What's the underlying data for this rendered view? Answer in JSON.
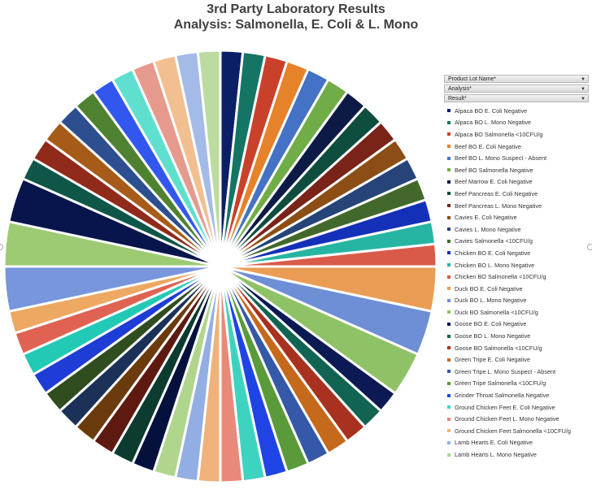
{
  "title": {
    "line1": "3rd Party Laboratory Results",
    "line2": "Analysis: Salmonella, E. Coli & L. Mono"
  },
  "filters": [
    {
      "label": "Product Lot Name*"
    },
    {
      "label": "Analysis*"
    },
    {
      "label": "Result*"
    }
  ],
  "chart_data": {
    "type": "pie",
    "title": "3rd Party Laboratory Results",
    "subtitle": "Analysis: Salmonella, E. Coli & L. Mono",
    "start_angle_deg": 0,
    "direction": "clockwise",
    "legend_position": "right",
    "slices": [
      {
        "label": "Alpaca BO E. Coli Negative",
        "value": 1,
        "color": "#0b1f66"
      },
      {
        "label": "Alpaca BO L. Mono Negative",
        "value": 1,
        "color": "#157565"
      },
      {
        "label": "Alpaca BO Salmonella <10CFU/g",
        "value": 1,
        "color": "#c9412a"
      },
      {
        "label": "Beef BO E. Coli Negative",
        "value": 1,
        "color": "#e5822a"
      },
      {
        "label": "Beef BO L. Mono Suspect - Absent",
        "value": 1,
        "color": "#4472c4"
      },
      {
        "label": "Beef BO Salmonella Negative",
        "value": 1,
        "color": "#70ad47"
      },
      {
        "label": "Beef Marrow E. Coli Negative",
        "value": 1,
        "color": "#0d1a45"
      },
      {
        "label": "Beef Pancreas E. Coli Negative",
        "value": 1,
        "color": "#0f4d3e"
      },
      {
        "label": "Beef Pancreas L. Mono Negative",
        "value": 1,
        "color": "#7a2318"
      },
      {
        "label": "Cavies E. Coli Negative",
        "value": 1,
        "color": "#8c4e14"
      },
      {
        "label": "Cavies L. Mono Negative",
        "value": 1,
        "color": "#264478"
      },
      {
        "label": "Cavies Salmonella <10CFU/g",
        "value": 1,
        "color": "#43682b"
      },
      {
        "label": "Chicken BO E. Coli Negative",
        "value": 1,
        "color": "#1530b8"
      },
      {
        "label": "Chicken BO L. Mono Negative",
        "value": 1,
        "color": "#27b5a3"
      },
      {
        "label": "Chicken BO Salmonella <10CFU/g",
        "value": 1,
        "color": "#d95a48"
      },
      {
        "label": "Duck BO E. Coli Negative",
        "value": 2,
        "color": "#eb9c55"
      },
      {
        "label": "Duck BO L. Mono Negative",
        "value": 2,
        "color": "#6e8fd6"
      },
      {
        "label": "Duck BO Salmonella <10CFU/g",
        "value": 2,
        "color": "#8fc266"
      },
      {
        "label": "Goose BO E. Coli Negative",
        "value": 1,
        "color": "#0b1a52"
      },
      {
        "label": "Goose BO L. Mono Negative",
        "value": 1,
        "color": "#106451"
      },
      {
        "label": "Goose BO Salmonella <10CFU/g",
        "value": 1,
        "color": "#a8321f"
      },
      {
        "label": "Green Tripe E. Coli Negative",
        "value": 1,
        "color": "#c5691d"
      },
      {
        "label": "Green Tripe L. Mono Suspect - Absent",
        "value": 1,
        "color": "#3558a8"
      },
      {
        "label": "Green Tripe Salmonella <10CFU/g",
        "value": 1,
        "color": "#5a9a3a"
      },
      {
        "label": "Grinder Throat Salmonella Negative",
        "value": 1,
        "color": "#1f44e6"
      },
      {
        "label": "Ground Chicken Feet E. Coli Negative",
        "value": 1,
        "color": "#3ed3c1"
      },
      {
        "label": "Ground Chicken Feet L. Mono Negative",
        "value": 1,
        "color": "#e8897a"
      },
      {
        "label": "Ground Chicken Feet Salmonella <10CFU/g",
        "value": 1,
        "color": "#f0b27a"
      },
      {
        "label": "Lamb Hearts E. Coli Negative",
        "value": 1,
        "color": "#93aee3"
      },
      {
        "label": "Lamb Hearts L. Mono Negative",
        "value": 1,
        "color": "#b0d68d"
      },
      {
        "label": "",
        "value": 1,
        "color": "#05113d"
      },
      {
        "label": "",
        "value": 1,
        "color": "#0c3b30"
      },
      {
        "label": "",
        "value": 1,
        "color": "#5e1a11"
      },
      {
        "label": "",
        "value": 1,
        "color": "#6c3b0d"
      },
      {
        "label": "",
        "value": 1,
        "color": "#1b3158"
      },
      {
        "label": "",
        "value": 1,
        "color": "#2f4d1f"
      },
      {
        "label": "",
        "value": 1,
        "color": "#1e3dd6"
      },
      {
        "label": "",
        "value": 1,
        "color": "#22c9b5"
      },
      {
        "label": "",
        "value": 1,
        "color": "#e06252"
      },
      {
        "label": "",
        "value": 1,
        "color": "#eda862"
      },
      {
        "label": "",
        "value": 2,
        "color": "#7796dc"
      },
      {
        "label": "",
        "value": 2,
        "color": "#9ccb74"
      },
      {
        "label": "",
        "value": 2,
        "color": "#07154c"
      },
      {
        "label": "",
        "value": 1,
        "color": "#0f5648"
      },
      {
        "label": "",
        "value": 1,
        "color": "#902a1a"
      },
      {
        "label": "",
        "value": 1,
        "color": "#a65b18"
      },
      {
        "label": "",
        "value": 1,
        "color": "#2d4f8f"
      },
      {
        "label": "",
        "value": 1,
        "color": "#4e8230"
      },
      {
        "label": "",
        "value": 1,
        "color": "#3157ee"
      },
      {
        "label": "",
        "value": 1,
        "color": "#5fe0cf"
      },
      {
        "label": "",
        "value": 1,
        "color": "#e69a8d"
      },
      {
        "label": "",
        "value": 1,
        "color": "#f2bf90"
      },
      {
        "label": "",
        "value": 1,
        "color": "#a4bbe8"
      },
      {
        "label": "",
        "value": 1,
        "color": "#bcdba0"
      }
    ]
  }
}
